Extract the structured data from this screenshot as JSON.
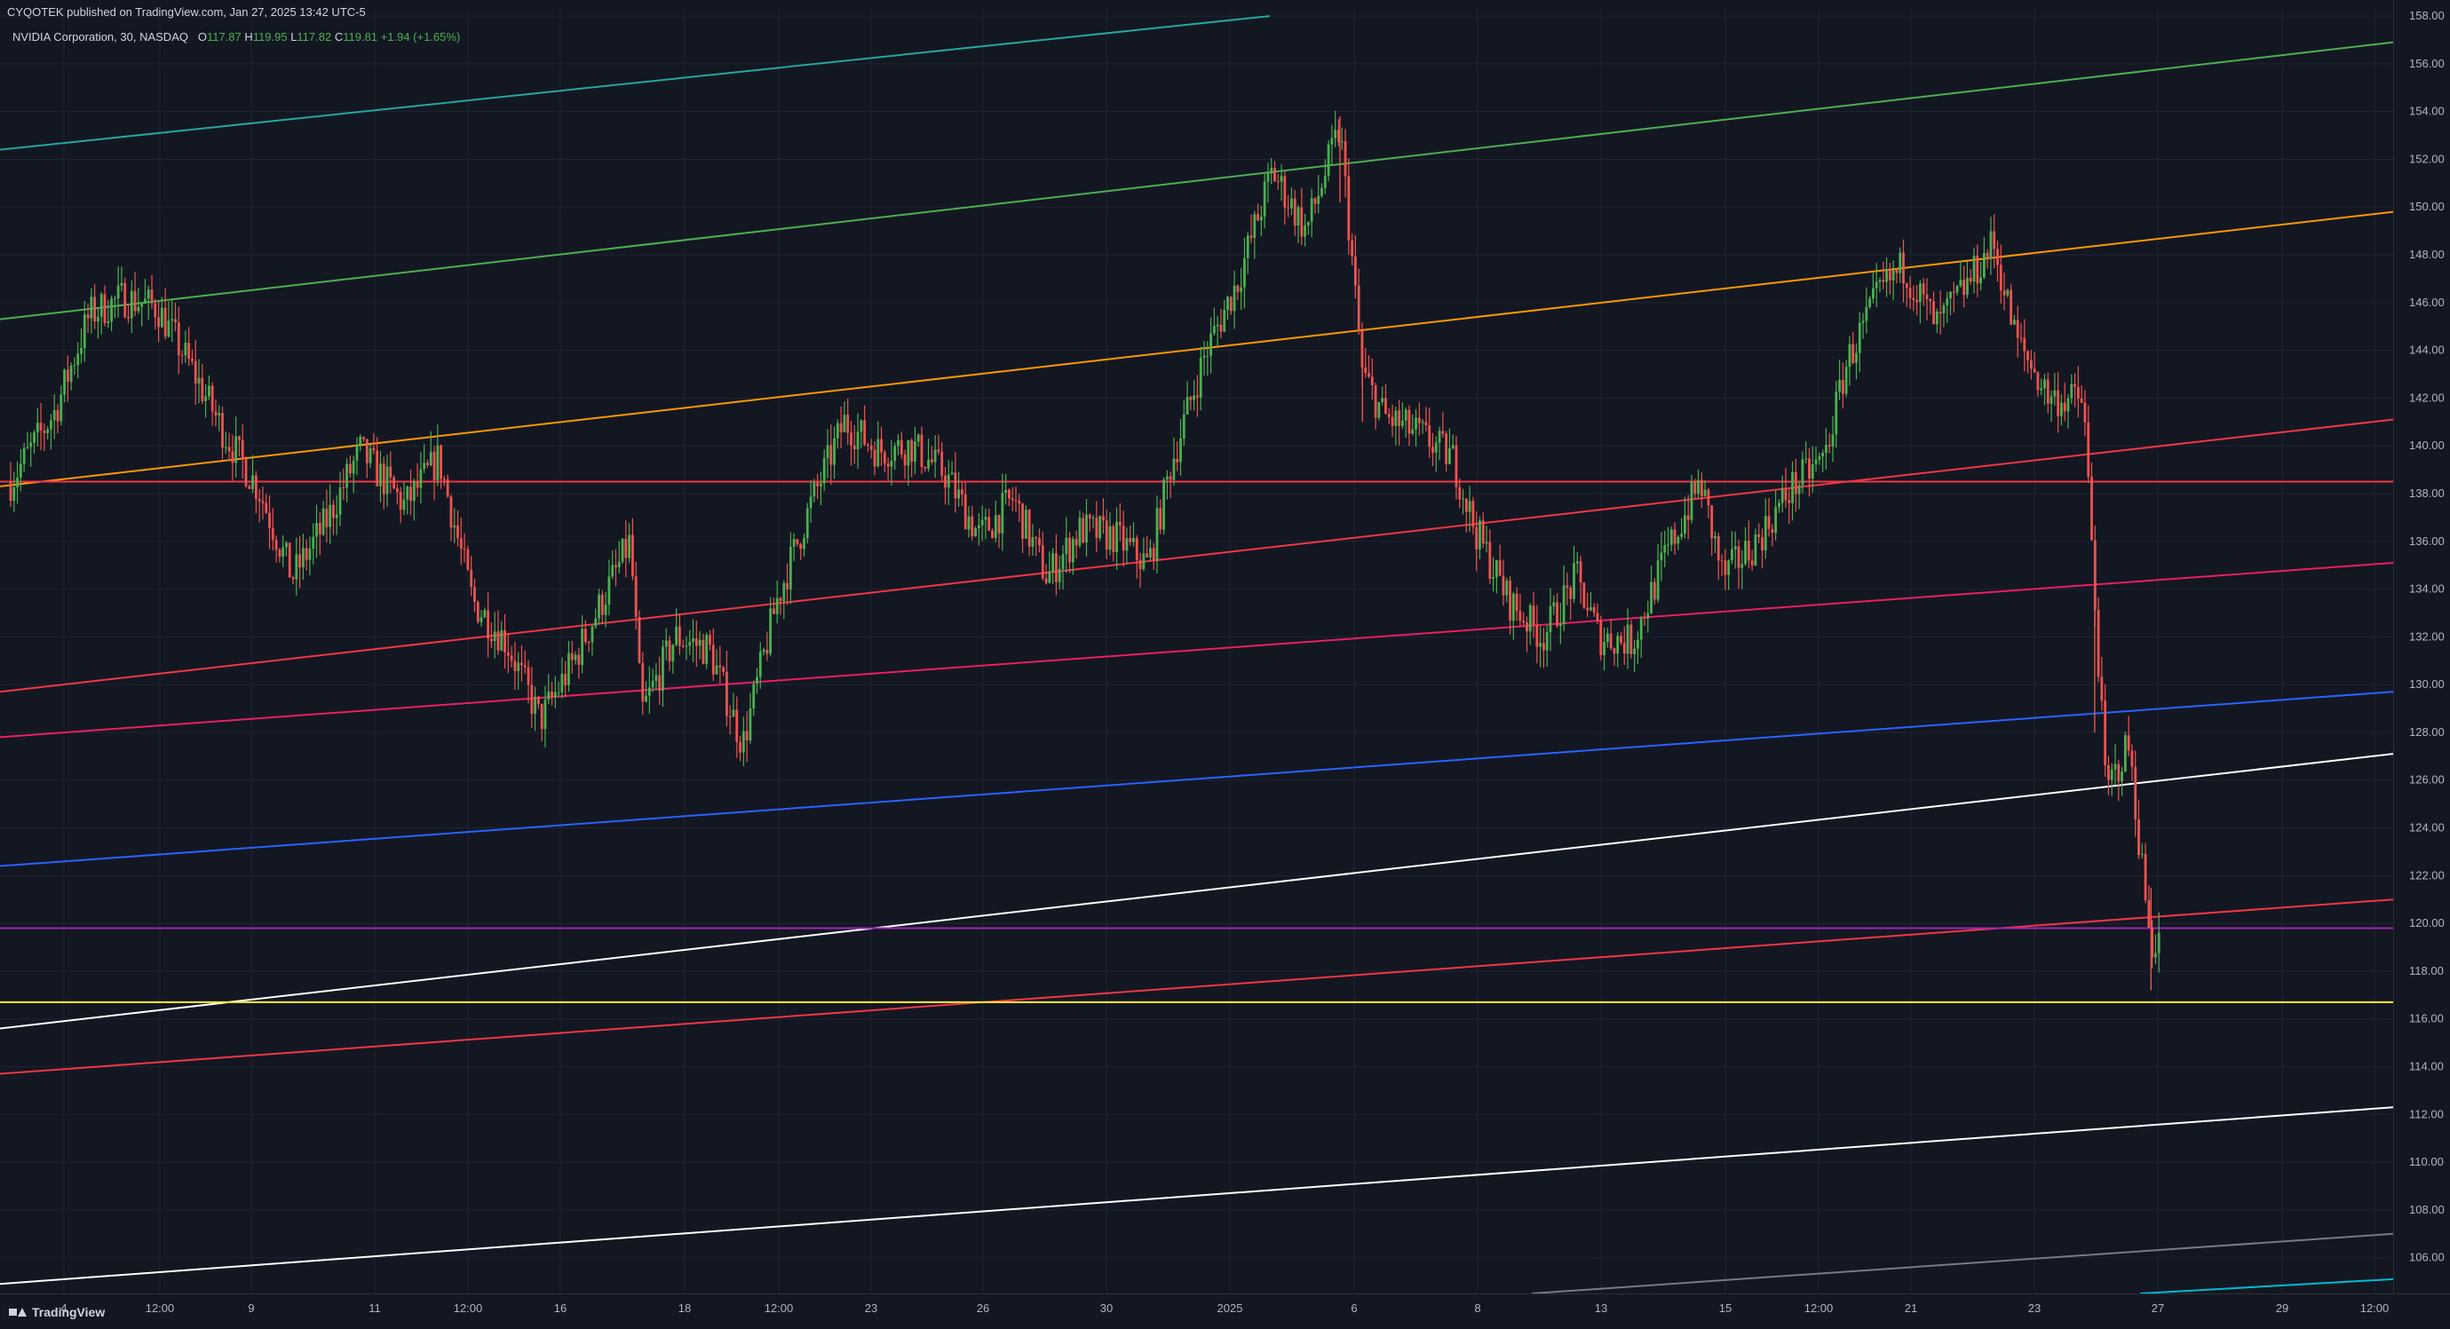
{
  "header": {
    "publisher": "CYQOTEK published on TradingView.com, Jan 27, 2025 13:42 UTC-5"
  },
  "legend": {
    "symbol": "NVIDIA Corporation, 30, NASDAQ",
    "open_label": "O",
    "open": "117.87",
    "high_label": "H",
    "high": "119.95",
    "low_label": "L",
    "low": "117.82",
    "close_label": "C",
    "close": "119.81",
    "change": "+1.94 (+1.65%)"
  },
  "brand": {
    "name": "TradingView",
    "icon": "tradingview-logo-icon"
  },
  "colors": {
    "background": "#131722",
    "grid": "#1f2433",
    "axis_text": "#b2b5be",
    "up": "#4caf50",
    "down": "#ef5350"
  },
  "chart_data": {
    "type": "candlestick",
    "interval": "30",
    "ylim": [
      104.5,
      158.3
    ],
    "y_ticks": [
      106,
      108,
      110,
      112,
      114,
      116,
      118,
      120,
      122,
      124,
      126,
      128,
      130,
      132,
      134,
      136,
      138,
      140,
      142,
      144,
      146,
      148,
      150,
      152,
      154,
      156,
      158
    ],
    "y_tick_labels": [
      "106.00",
      "108.00",
      "110.00",
      "112.00",
      "114.00",
      "116.00",
      "118.00",
      "120.00",
      "122.00",
      "124.00",
      "126.00",
      "128.00",
      "130.00",
      "132.00",
      "134.00",
      "136.00",
      "138.00",
      "140.00",
      "142.00",
      "144.00",
      "146.00",
      "148.00",
      "150.00",
      "152.00",
      "154.00",
      "156.00",
      "158.00"
    ],
    "x_tick_labels": [
      "4",
      "12:00",
      "9",
      "11",
      "12:00",
      "16",
      "18",
      "12:00",
      "23",
      "26",
      "30",
      "2025",
      "6",
      "8",
      "13",
      "15",
      "12:00",
      "21",
      "23",
      "27",
      "29",
      "12:00"
    ],
    "price_path": [
      [
        0,
        138.5
      ],
      [
        4,
        141.5
      ],
      [
        7,
        145.5
      ],
      [
        10,
        146.2
      ],
      [
        13,
        145.8
      ],
      [
        16,
        143.3
      ],
      [
        19,
        140.5
      ],
      [
        22,
        138.2
      ],
      [
        25,
        134.5
      ],
      [
        28,
        136.8
      ],
      [
        31,
        139.8
      ],
      [
        35,
        137.5
      ],
      [
        38,
        139.5
      ],
      [
        41,
        133.5
      ],
      [
        44,
        131.8
      ],
      [
        47,
        128.5
      ],
      [
        50,
        131.0
      ],
      [
        53,
        134.0
      ],
      [
        55,
        136.0
      ],
      [
        56,
        128.8
      ],
      [
        59,
        132.0
      ],
      [
        62,
        131.5
      ],
      [
        65,
        127.5
      ],
      [
        68,
        133.5
      ],
      [
        71,
        137.5
      ],
      [
        74,
        141.0
      ],
      [
        77,
        139.8
      ],
      [
        80,
        140.0
      ],
      [
        83,
        138.8
      ],
      [
        86,
        136.2
      ],
      [
        89,
        137.8
      ],
      [
        92,
        134.5
      ],
      [
        95,
        136.5
      ],
      [
        98,
        136.2
      ],
      [
        101,
        135.0
      ],
      [
        103,
        139.2
      ],
      [
        106,
        143.8
      ],
      [
        109,
        147.0
      ],
      [
        112,
        151.5
      ],
      [
        115,
        149.0
      ],
      [
        118,
        153.3
      ],
      [
        120,
        143.0
      ],
      [
        122,
        141.2
      ],
      [
        125,
        140.5
      ],
      [
        128,
        139.5
      ],
      [
        130,
        136.5
      ],
      [
        133,
        133.5
      ],
      [
        136,
        132.0
      ],
      [
        139,
        134.5
      ],
      [
        141,
        132.0
      ],
      [
        144,
        131.8
      ],
      [
        147,
        135.5
      ],
      [
        150,
        138.5
      ],
      [
        152,
        134.5
      ],
      [
        155,
        136.0
      ],
      [
        158,
        138.2
      ],
      [
        161,
        139.5
      ],
      [
        163,
        143.5
      ],
      [
        166,
        146.5
      ],
      [
        168,
        147.5
      ],
      [
        171,
        145.0
      ],
      [
        174,
        147.0
      ],
      [
        176,
        148.5
      ],
      [
        178,
        144.5
      ],
      [
        181,
        142.0
      ],
      [
        184,
        141.9
      ],
      [
        186,
        125.5
      ],
      [
        188,
        127.5
      ],
      [
        190,
        119.0
      ],
      [
        191,
        119.8
      ]
    ],
    "spikes": [
      {
        "bar": 118,
        "high": 153.8,
        "low": 150.2
      },
      {
        "bar": 120,
        "high": 144.0,
        "low": 141.0
      },
      {
        "bar": 185,
        "high": 136.0,
        "low": 128.0
      },
      {
        "bar": 190,
        "high": 121.5,
        "low": 117.2
      }
    ],
    "trendlines": [
      {
        "color": "#26a69a",
        "p1": [
          0,
          152.4
        ],
        "p2": [
          1430,
          158.0
        ]
      },
      {
        "color": "#4caf50",
        "p1": [
          0,
          145.3
        ],
        "p2": [
          2695,
          156.9
        ]
      },
      {
        "color": "#ff9800",
        "p1": [
          0,
          138.3
        ],
        "p2": [
          2695,
          149.8
        ]
      },
      {
        "color": "#f23645",
        "p1": [
          0,
          129.7
        ],
        "p2": [
          2695,
          141.1
        ]
      },
      {
        "color": "#e91e63",
        "p1": [
          0,
          127.8
        ],
        "p2": [
          2695,
          135.1
        ]
      },
      {
        "color": "#2962ff",
        "p1": [
          0,
          122.4
        ],
        "p2": [
          2695,
          129.7
        ]
      },
      {
        "color": "#ffffff",
        "p1": [
          0,
          115.6
        ],
        "p2": [
          2695,
          127.1
        ]
      },
      {
        "color": "#f23645",
        "p1": [
          0,
          113.7
        ],
        "p2": [
          2695,
          121.0
        ]
      },
      {
        "color": "#ffffff",
        "p1": [
          0,
          104.9
        ],
        "p2": [
          2695,
          112.3
        ]
      },
      {
        "color": "#787b86",
        "p1": [
          1725,
          104.5
        ],
        "p2": [
          2695,
          107.0
        ]
      },
      {
        "color": "#00bcd4",
        "p1": [
          2410,
          104.5
        ],
        "p2": [
          2695,
          105.1
        ]
      }
    ],
    "hlines": [
      {
        "value": 138.5,
        "color": "#f23645"
      },
      {
        "value": 119.8,
        "color": "#9c27b0"
      },
      {
        "value": 116.7,
        "color": "#ffeb3b"
      }
    ]
  }
}
